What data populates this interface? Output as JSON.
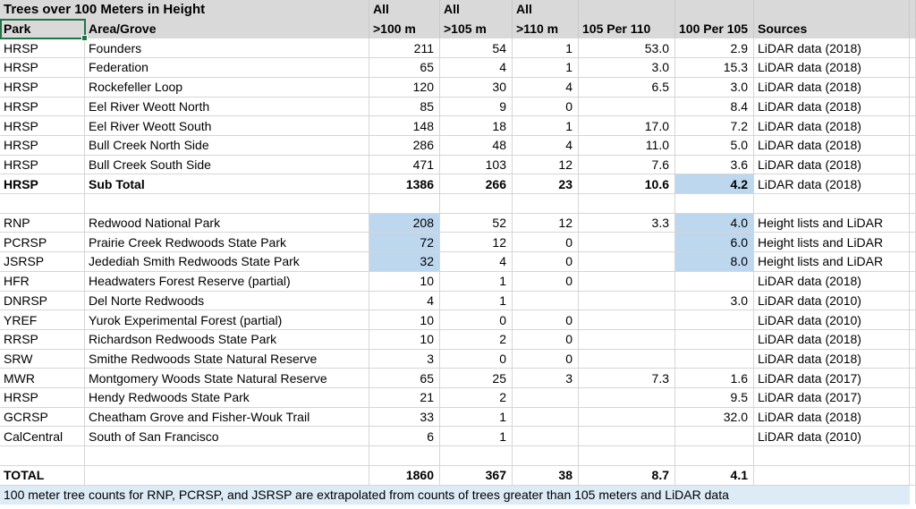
{
  "title": "Trees over 100 Meters in Height",
  "colors": {
    "header_bg": "#d9d9d9",
    "highlight": "#bdd7ee",
    "note_bg": "#dcebf6",
    "gridline": "#d6d6d6",
    "selection": "#217346"
  },
  "header": {
    "all_label_100": "All",
    "all_label_105": "All",
    "all_label_110": "All",
    "park": "Park",
    "area": "Area/Grove",
    "c100": ">100 m",
    "c105": ">105 m",
    "c110": ">110 m",
    "p105": "105 Per 110",
    "p100": "100 Per 105",
    "src": "Sources"
  },
  "note": "100 meter tree counts for RNP, PCRSP, and JSRSP are extrapolated from counts of trees greater than 105 meters and LiDAR data",
  "table": {
    "columns": [
      "park",
      "area",
      "c100",
      "c105",
      "c110",
      "p105",
      "p100",
      "src"
    ],
    "numeric_columns": [
      "c100",
      "c105",
      "c110",
      "p105",
      "p100"
    ],
    "rows": [
      {
        "park": "HRSP",
        "area": "Founders",
        "c100": "211",
        "c105": "54",
        "c110": "1",
        "p105": "53.0",
        "p100": "2.9",
        "src": "LiDAR data (2018)"
      },
      {
        "park": "HRSP",
        "area": "Federation",
        "c100": "65",
        "c105": "4",
        "c110": "1",
        "p105": "3.0",
        "p100": "15.3",
        "src": "LiDAR data (2018)"
      },
      {
        "park": "HRSP",
        "area": "Rockefeller Loop",
        "c100": "120",
        "c105": "30",
        "c110": "4",
        "p105": "6.5",
        "p100": "3.0",
        "src": "LiDAR data (2018)"
      },
      {
        "park": "HRSP",
        "area": "Eel River Weott North",
        "c100": "85",
        "c105": "9",
        "c110": "0",
        "p105": "",
        "p100": "8.4",
        "src": "LiDAR data (2018)"
      },
      {
        "park": "HRSP",
        "area": "Eel River Weott South",
        "c100": "148",
        "c105": "18",
        "c110": "1",
        "p105": "17.0",
        "p100": "7.2",
        "src": "LiDAR data (2018)"
      },
      {
        "park": "HRSP",
        "area": "Bull Creek North Side",
        "c100": "286",
        "c105": "48",
        "c110": "4",
        "p105": "11.0",
        "p100": "5.0",
        "src": "LiDAR data (2018)"
      },
      {
        "park": "HRSP",
        "area": "Bull Creek South Side",
        "c100": "471",
        "c105": "103",
        "c110": "12",
        "p105": "7.6",
        "p100": "3.6",
        "src": "LiDAR data (2018)"
      },
      {
        "park": "HRSP",
        "area": "Sub Total",
        "c100": "1386",
        "c105": "266",
        "c110": "23",
        "p105": "10.6",
        "p100": "4.2",
        "src": "LiDAR data (2018)",
        "bold": true,
        "hl": [
          "p100"
        ]
      },
      {
        "park": "",
        "area": "",
        "c100": "",
        "c105": "",
        "c110": "",
        "p105": "",
        "p100": "",
        "src": ""
      },
      {
        "park": "RNP",
        "area": "Redwood National Park",
        "c100": "208",
        "c105": "52",
        "c110": "12",
        "p105": "3.3",
        "p100": "4.0",
        "src": "Height lists and LiDAR",
        "hl": [
          "c100",
          "p100"
        ]
      },
      {
        "park": "PCRSP",
        "area": "Prairie Creek Redwoods State Park",
        "c100": "72",
        "c105": "12",
        "c110": "0",
        "p105": "",
        "p100": "6.0",
        "src": "Height lists and LiDAR",
        "hl": [
          "c100",
          "p100"
        ]
      },
      {
        "park": "JSRSP",
        "area": "Jedediah Smith Redwoods State Park",
        "c100": "32",
        "c105": "4",
        "c110": "0",
        "p105": "",
        "p100": "8.0",
        "src": "Height lists and LiDAR",
        "hl": [
          "c100",
          "p100"
        ]
      },
      {
        "park": "HFR",
        "area": "Headwaters Forest Reserve (partial)",
        "c100": "10",
        "c105": "1",
        "c110": "0",
        "p105": "",
        "p100": "",
        "src": "LiDAR data (2018)"
      },
      {
        "park": "DNRSP",
        "area": "Del Norte Redwoods",
        "c100": "4",
        "c105": "1",
        "c110": "",
        "p105": "",
        "p100": "3.0",
        "src": "LiDAR data (2010)"
      },
      {
        "park": "YREF",
        "area": "Yurok Experimental Forest (partial)",
        "c100": "10",
        "c105": "0",
        "c110": "0",
        "p105": "",
        "p100": "",
        "src": "LiDAR data (2010)"
      },
      {
        "park": "RRSP",
        "area": "Richardson Redwoods State Park",
        "c100": "10",
        "c105": "2",
        "c110": "0",
        "p105": "",
        "p100": "",
        "src": "LiDAR data (2018)"
      },
      {
        "park": "SRW",
        "area": "Smithe Redwoods State Natural Reserve",
        "c100": "3",
        "c105": "0",
        "c110": "0",
        "p105": "",
        "p100": "",
        "src": "LiDAR data (2018)"
      },
      {
        "park": "MWR",
        "area": "Montgomery Woods State Natural Reserve",
        "c100": "65",
        "c105": "25",
        "c110": "3",
        "p105": "7.3",
        "p100": "1.6",
        "src": "LiDAR data (2017)"
      },
      {
        "park": "HRSP",
        "area": "Hendy Redwoods State Park",
        "c100": "21",
        "c105": "2",
        "c110": "",
        "p105": "",
        "p100": "9.5",
        "src": "LiDAR data (2017)"
      },
      {
        "park": "GCRSP",
        "area": "Cheatham Grove and Fisher-Wouk Trail",
        "c100": "33",
        "c105": "1",
        "c110": "",
        "p105": "",
        "p100": "32.0",
        "src": "LiDAR data (2018)"
      },
      {
        "park": "CalCentral",
        "area": "South of San Francisco",
        "c100": "6",
        "c105": "1",
        "c110": "",
        "p105": "",
        "p100": "",
        "src": "LiDAR data (2010)"
      },
      {
        "park": "",
        "area": "",
        "c100": "",
        "c105": "",
        "c110": "",
        "p105": "",
        "p100": "",
        "src": ""
      },
      {
        "park": "TOTAL",
        "area": "",
        "c100": "1860",
        "c105": "367",
        "c110": "38",
        "p105": "8.7",
        "p100": "4.1",
        "src": "",
        "bold": true
      }
    ]
  }
}
